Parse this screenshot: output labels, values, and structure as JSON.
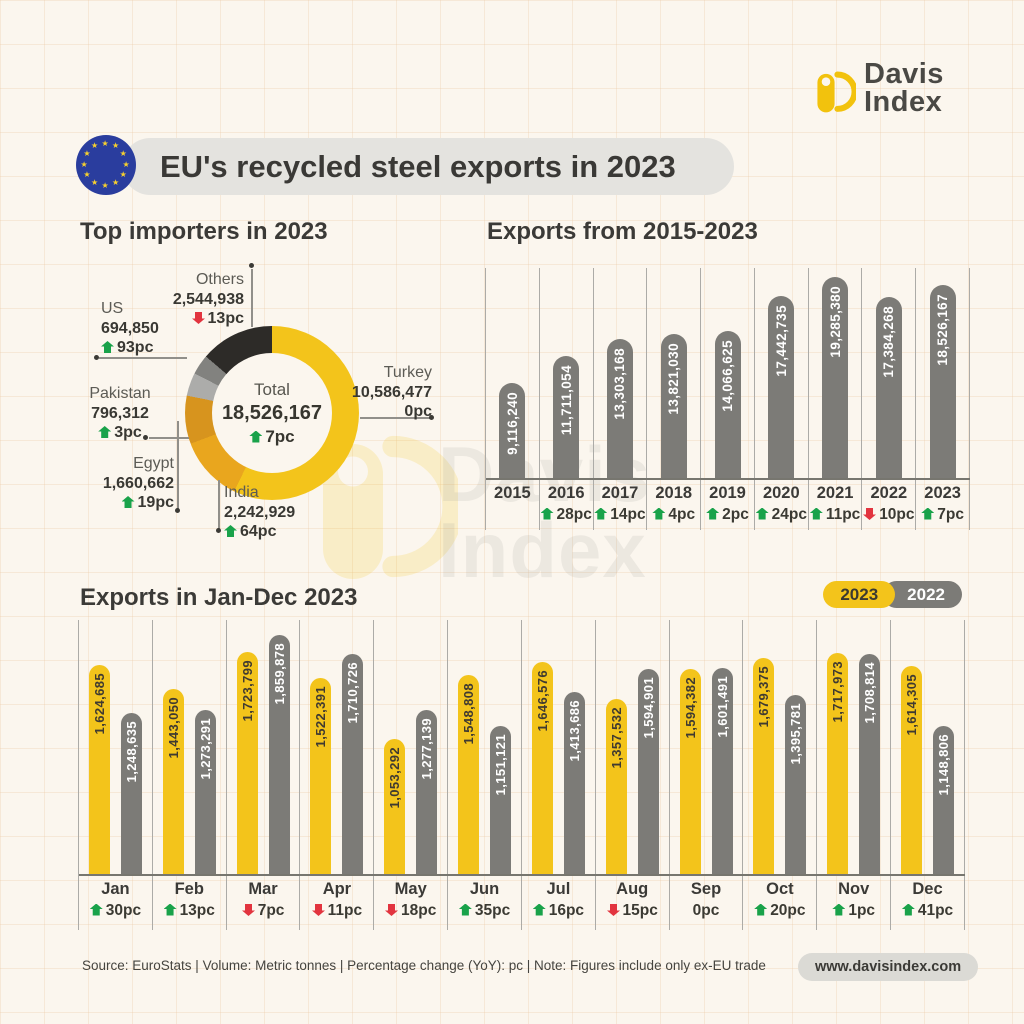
{
  "brand": {
    "name_line1": "Davis",
    "name_line2": "Index",
    "website": "www.davisindex.com",
    "yellow": "#F2C20D",
    "dark_text": "#4A4945"
  },
  "header": {
    "title": "EU's recycled steel exports in 2023"
  },
  "sections": {
    "donut_title": "Top importers in 2023",
    "yearly_title": "Exports from 2015-2023",
    "monthly_title": "Exports in Jan-Dec 2023"
  },
  "legend": {
    "items": [
      {
        "label": "2023",
        "color": "#F3C41B"
      },
      {
        "label": "2022",
        "color": "#7C7B77"
      }
    ]
  },
  "footer": {
    "source": "Source: EuroStats | Volume: Metric tonnes | Percentage change (YoY): pc | Note: Figures include only ex-EU trade"
  },
  "status_colors": {
    "up_green": "#19A24A",
    "down_red": "#E2343F"
  },
  "chart_data": [
    {
      "type": "pie",
      "title": "Top importers in 2023",
      "style": "donut",
      "total": {
        "label": "Total",
        "value": "18,526,167",
        "pc": "7pc",
        "dir": "up"
      },
      "slices": [
        {
          "name": "Turkey",
          "value": 10586477,
          "value_str": "10,586,477",
          "pc": "0pc",
          "dir": "none",
          "color": "#F3C41B"
        },
        {
          "name": "India",
          "value": 2242929,
          "value_str": "2,242,929",
          "pc": "64pc",
          "dir": "up",
          "color": "#E9A61E"
        },
        {
          "name": "Egypt",
          "value": 1660662,
          "value_str": "1,660,662",
          "pc": "19pc",
          "dir": "up",
          "color": "#D7941E"
        },
        {
          "name": "Pakistan",
          "value": 796312,
          "value_str": "796,312",
          "pc": "3pc",
          "dir": "up",
          "color": "#ACACAA"
        },
        {
          "name": "US",
          "value": 694850,
          "value_str": "694,850",
          "pc": "93pc",
          "dir": "up",
          "color": "#82827F"
        },
        {
          "name": "Others",
          "value": 2544938,
          "value_str": "2,544,938",
          "pc": "13pc",
          "dir": "down",
          "color": "#2D2B28"
        }
      ]
    },
    {
      "type": "bar",
      "title": "Exports from 2015-2023",
      "bar_color": "#7C7B77",
      "categories": [
        "2015",
        "2016",
        "2017",
        "2018",
        "2019",
        "2020",
        "2021",
        "2022",
        "2023"
      ],
      "values": [
        9116240,
        11711054,
        13303168,
        13821030,
        14066625,
        17442735,
        19285380,
        17384268,
        18526167
      ],
      "labels": [
        "9,116,240",
        "11,711,054",
        "13,303,168",
        "13,821,030",
        "14,066,625",
        "17,442,735",
        "19,285,380",
        "17,384,268",
        "18,526,167"
      ],
      "changes": [
        {
          "dir": "none",
          "pc": ""
        },
        {
          "dir": "up",
          "pc": "28pc"
        },
        {
          "dir": "up",
          "pc": "14pc"
        },
        {
          "dir": "up",
          "pc": "4pc"
        },
        {
          "dir": "up",
          "pc": "2pc"
        },
        {
          "dir": "up",
          "pc": "24pc"
        },
        {
          "dir": "up",
          "pc": "11pc"
        },
        {
          "dir": "down",
          "pc": "10pc"
        },
        {
          "dir": "up",
          "pc": "7pc"
        }
      ],
      "ylim": [
        0,
        19285380
      ]
    },
    {
      "type": "bar",
      "title": "Exports in Jan-Dec 2023",
      "style": "grouped",
      "categories": [
        "Jan",
        "Feb",
        "Mar",
        "Apr",
        "May",
        "Jun",
        "Jul",
        "Aug",
        "Sep",
        "Oct",
        "Nov",
        "Dec"
      ],
      "series": [
        {
          "name": "2023",
          "color": "#F3C41B",
          "values": [
            1624685,
            1443050,
            1723799,
            1522391,
            1053292,
            1548808,
            1646576,
            1357532,
            1594382,
            1679375,
            1717973,
            1614305
          ],
          "labels": [
            "1,624,685",
            "1,443,050",
            "1,723,799",
            "1,522,391",
            "1,053,292",
            "1,548,808",
            "1,646,576",
            "1,357,532",
            "1,594,382",
            "1,679,375",
            "1,717,973",
            "1,614,305"
          ]
        },
        {
          "name": "2022",
          "color": "#7C7B77",
          "values": [
            1248635,
            1273291,
            1859878,
            1710726,
            1277139,
            1151121,
            1413686,
            1594901,
            1601491,
            1395781,
            1708814,
            1148806
          ],
          "labels": [
            "1,248,635",
            "1,273,291",
            "1,859,878",
            "1,710,726",
            "1,277,139",
            "1,151,121",
            "1,413,686",
            "1,594,901",
            "1,601,491",
            "1,395,781",
            "1,708,814",
            "1,148,806"
          ]
        }
      ],
      "changes": [
        {
          "dir": "up",
          "pc": "30pc"
        },
        {
          "dir": "up",
          "pc": "13pc"
        },
        {
          "dir": "down",
          "pc": "7pc"
        },
        {
          "dir": "down",
          "pc": "11pc"
        },
        {
          "dir": "down",
          "pc": "18pc"
        },
        {
          "dir": "up",
          "pc": "35pc"
        },
        {
          "dir": "up",
          "pc": "16pc"
        },
        {
          "dir": "down",
          "pc": "15pc"
        },
        {
          "dir": "none",
          "pc": "0pc"
        },
        {
          "dir": "up",
          "pc": "20pc"
        },
        {
          "dir": "up",
          "pc": "1pc"
        },
        {
          "dir": "up",
          "pc": "41pc"
        }
      ],
      "ylim": [
        0,
        1976000
      ]
    }
  ]
}
